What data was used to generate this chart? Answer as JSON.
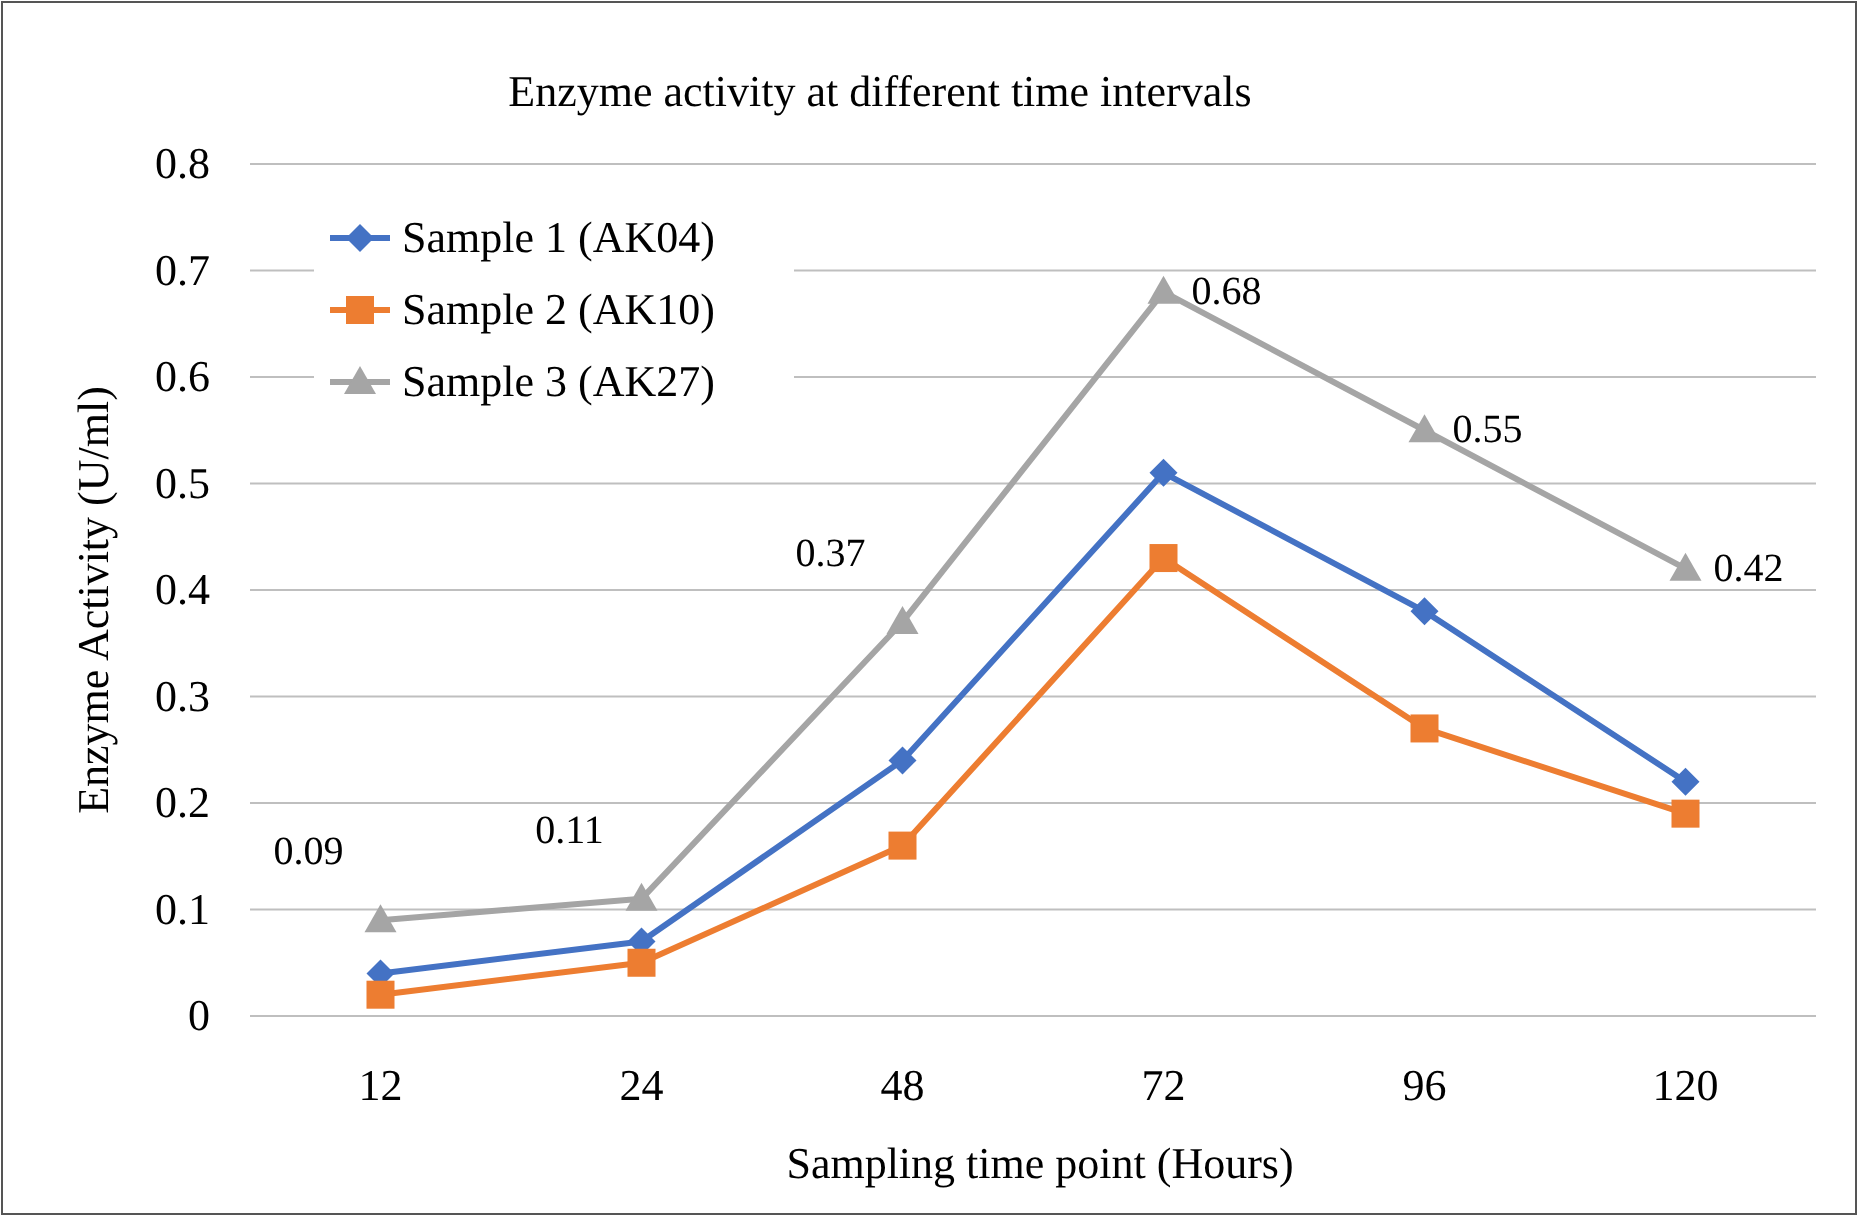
{
  "chart_data": {
    "type": "line",
    "title": "Enzyme activity at different time intervals",
    "xlabel": "Sampling time point (Hours)",
    "ylabel": "Enzyme Activity (U/ml)",
    "categories": [
      "12",
      "24",
      "48",
      "72",
      "96",
      "120"
    ],
    "ylim": [
      0,
      0.8
    ],
    "yticks": [
      0,
      0.1,
      0.2,
      0.3,
      0.4,
      0.5,
      0.6,
      0.7,
      0.8
    ],
    "grid": "y",
    "legend": "top left",
    "series": [
      {
        "name": "Sample 1  (AK04)",
        "color": "#4472c4",
        "marker": "diamond",
        "values": [
          0.04,
          0.07,
          0.24,
          0.51,
          0.38,
          0.22
        ]
      },
      {
        "name": "Sample 2 (AK10)",
        "color": "#ed7d31",
        "marker": "square",
        "values": [
          0.02,
          0.05,
          0.16,
          0.43,
          0.27,
          0.19
        ]
      },
      {
        "name": "Sample 3 (AK27)",
        "color": "#a5a5a5",
        "marker": "triangle",
        "values": [
          0.09,
          0.11,
          0.37,
          0.68,
          0.55,
          0.42
        ],
        "value_labels": [
          "0.09",
          "0.11",
          "0.37",
          "0.68",
          "0.55",
          "0.42"
        ]
      }
    ]
  }
}
